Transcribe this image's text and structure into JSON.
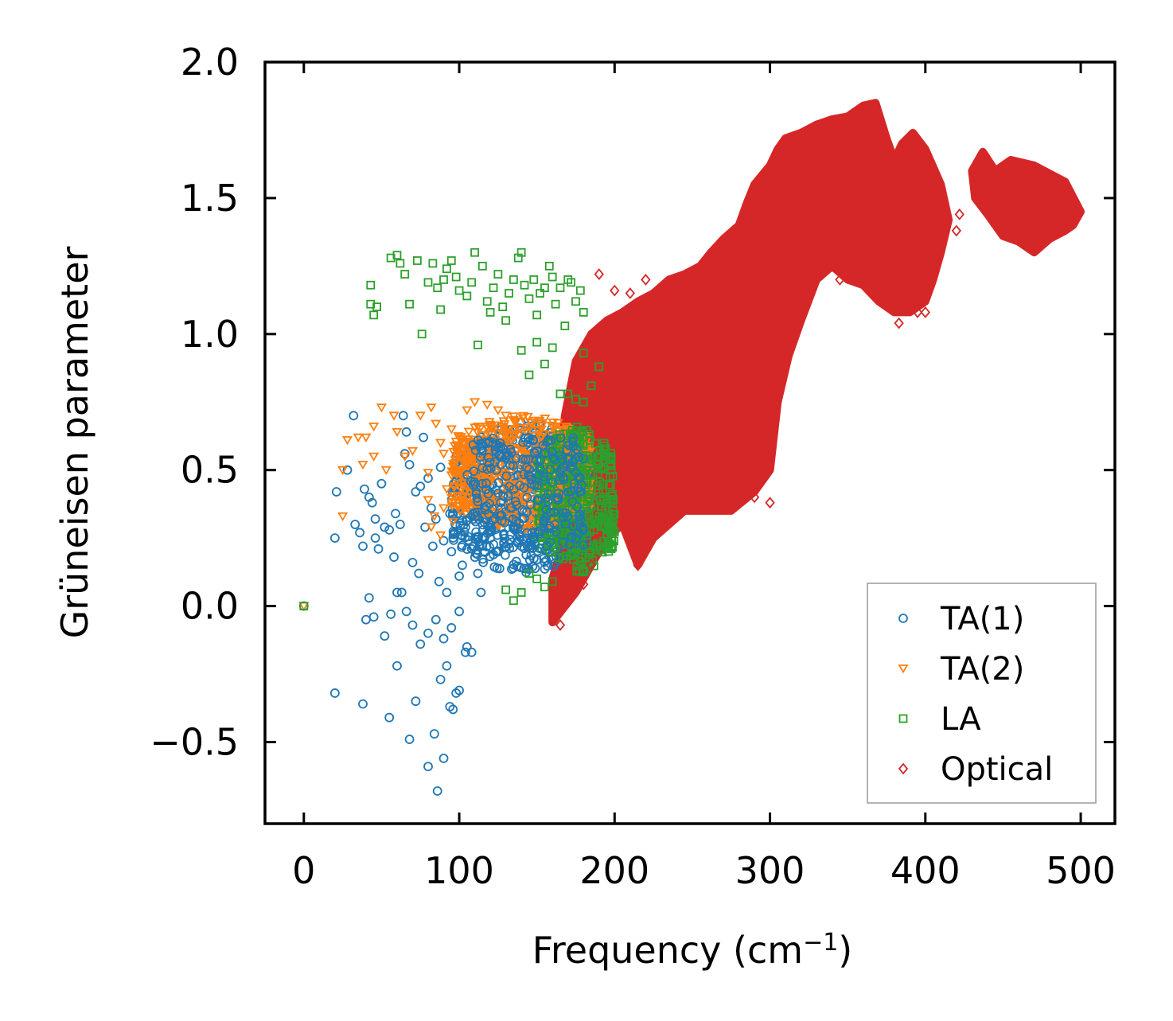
{
  "chart_data": {
    "type": "scatter",
    "title": "",
    "xlabel": "Frequency (cm",
    "xlabel_sup": "−1",
    "xlabel_close": ")",
    "ylabel": "Grüneisen parameter",
    "xlim": [
      -25,
      522
    ],
    "ylim": [
      -0.8,
      2.0
    ],
    "xticks": [
      0,
      100,
      200,
      300,
      400,
      500
    ],
    "xtick_labels": [
      "0",
      "100",
      "200",
      "300",
      "400",
      "500"
    ],
    "yticks": [
      -0.5,
      0.0,
      0.5,
      1.0,
      1.5,
      2.0
    ],
    "ytick_labels": [
      "−0.5",
      "0.0",
      "0.5",
      "1.0",
      "1.5",
      "2.0"
    ],
    "legend_position": "bottom-right",
    "series": [
      {
        "name": "TA(1)",
        "marker": "circle",
        "color": "#1f77b4",
        "points": [
          [
            0,
            0.0
          ],
          [
            20,
            0.25
          ],
          [
            21,
            0.42
          ],
          [
            28,
            0.5
          ],
          [
            32,
            0.7
          ],
          [
            33,
            0.3
          ],
          [
            36,
            0.27
          ],
          [
            38,
            0.22
          ],
          [
            39,
            0.43
          ],
          [
            42,
            0.4
          ],
          [
            44,
            0.38
          ],
          [
            46,
            0.32
          ],
          [
            46,
            0.25
          ],
          [
            48,
            0.21
          ],
          [
            50,
            0.45
          ],
          [
            52,
            0.29
          ],
          [
            55,
            0.28
          ],
          [
            58,
            0.18
          ],
          [
            59,
            0.34
          ],
          [
            62,
            0.3
          ],
          [
            64,
            0.7
          ],
          [
            65,
            0.56
          ],
          [
            66,
            0.64
          ],
          [
            68,
            0.52
          ],
          [
            70,
            0.16
          ],
          [
            72,
            0.42
          ],
          [
            74,
            0.12
          ],
          [
            75,
            0.44
          ],
          [
            77,
            0.62
          ],
          [
            78,
            0.29
          ],
          [
            80,
            0.47
          ],
          [
            82,
            0.36
          ],
          [
            83,
            0.22
          ],
          [
            85,
            0.32
          ],
          [
            87,
            0.09
          ],
          [
            88,
            0.51
          ],
          [
            90,
            0.24
          ],
          [
            92,
            0.05
          ],
          [
            94,
            0.34
          ],
          [
            95,
            0.2
          ],
          [
            97,
            0.27
          ],
          [
            99,
            0.56
          ],
          [
            100,
            0.11
          ],
          [
            102,
            0.15
          ],
          [
            104,
            0.29
          ],
          [
            106,
            0.45
          ],
          [
            108,
            0.21
          ],
          [
            110,
            0.35
          ],
          [
            112,
            0.12
          ],
          [
            114,
            0.05
          ],
          [
            116,
            0.48
          ],
          [
            118,
            0.39
          ],
          [
            120,
            0.25
          ],
          [
            42,
            0.03
          ],
          [
            40,
            -0.05
          ],
          [
            45,
            -0.04
          ],
          [
            52,
            -0.11
          ],
          [
            56,
            -0.03
          ],
          [
            60,
            0.05
          ],
          [
            63,
            0.05
          ],
          [
            66,
            -0.02
          ],
          [
            70,
            -0.07
          ],
          [
            75,
            -0.14
          ],
          [
            80,
            -0.1
          ],
          [
            85,
            -0.05
          ],
          [
            90,
            -0.12
          ],
          [
            95,
            -0.08
          ],
          [
            100,
            -0.02
          ],
          [
            105,
            -0.15
          ],
          [
            108,
            -0.17
          ],
          [
            20,
            -0.32
          ],
          [
            38,
            -0.36
          ],
          [
            55,
            -0.41
          ],
          [
            60,
            -0.22
          ],
          [
            68,
            -0.49
          ],
          [
            72,
            -0.35
          ],
          [
            80,
            -0.59
          ],
          [
            84,
            -0.47
          ],
          [
            86,
            -0.68
          ],
          [
            88,
            -0.27
          ],
          [
            90,
            -0.56
          ],
          [
            92,
            -0.22
          ],
          [
            94,
            -0.37
          ],
          [
            96,
            -0.38
          ],
          [
            98,
            -0.32
          ],
          [
            100,
            -0.31
          ],
          [
            104,
            -0.17
          ]
        ],
        "cloud": {
          "x": [
            95,
            185
          ],
          "y": [
            0.12,
            0.68
          ],
          "count": 520
        }
      },
      {
        "name": "TA(2)",
        "marker": "triangle-down",
        "color": "#ff7f0e",
        "points": [
          [
            0,
            0.0
          ],
          [
            25,
            0.5
          ],
          [
            25,
            0.33
          ],
          [
            28,
            0.61
          ],
          [
            35,
            0.62
          ],
          [
            38,
            0.52
          ],
          [
            40,
            0.62
          ],
          [
            45,
            0.66
          ],
          [
            45,
            0.55
          ],
          [
            50,
            0.73
          ],
          [
            53,
            0.5
          ],
          [
            58,
            0.7
          ],
          [
            60,
            0.64
          ],
          [
            65,
            0.55
          ],
          [
            70,
            0.57
          ],
          [
            75,
            0.7
          ],
          [
            80,
            0.49
          ],
          [
            82,
            0.73
          ],
          [
            85,
            0.67
          ],
          [
            88,
            0.6
          ],
          [
            90,
            0.56
          ],
          [
            95,
            0.65
          ],
          [
            100,
            0.58
          ],
          [
            105,
            0.72
          ],
          [
            110,
            0.75
          ],
          [
            112,
            0.66
          ],
          [
            118,
            0.74
          ],
          [
            125,
            0.72
          ],
          [
            130,
            0.7
          ],
          [
            80,
            0.39
          ],
          [
            82,
            0.29
          ],
          [
            84,
            0.33
          ],
          [
            88,
            0.26
          ],
          [
            90,
            0.36
          ],
          [
            92,
            0.43
          ],
          [
            96,
            0.31
          ]
        ],
        "cloud": {
          "x": [
            95,
            185
          ],
          "y": [
            0.28,
            0.7
          ],
          "count": 650
        }
      },
      {
        "name": "LA",
        "marker": "square",
        "color": "#2ca02c",
        "points": [
          [
            0,
            0.0
          ],
          [
            43,
            1.18
          ],
          [
            43,
            1.11
          ],
          [
            45,
            1.07
          ],
          [
            47,
            1.1
          ],
          [
            56,
            1.28
          ],
          [
            60,
            1.29
          ],
          [
            62,
            1.26
          ],
          [
            65,
            1.22
          ],
          [
            68,
            1.11
          ],
          [
            73,
            1.27
          ],
          [
            76,
            1.0
          ],
          [
            80,
            1.19
          ],
          [
            83,
            1.26
          ],
          [
            86,
            1.17
          ],
          [
            88,
            1.09
          ],
          [
            90,
            1.2
          ],
          [
            92,
            1.24
          ],
          [
            95,
            1.27
          ],
          [
            98,
            1.21
          ],
          [
            100,
            1.16
          ],
          [
            105,
            1.14
          ],
          [
            108,
            1.19
          ],
          [
            110,
            1.3
          ],
          [
            112,
            0.96
          ],
          [
            115,
            1.25
          ],
          [
            118,
            1.12
          ],
          [
            120,
            1.08
          ],
          [
            122,
            1.17
          ],
          [
            125,
            1.22
          ],
          [
            128,
            1.1
          ],
          [
            130,
            1.05
          ],
          [
            132,
            1.15
          ],
          [
            135,
            1.2
          ],
          [
            138,
            1.28
          ],
          [
            140,
            1.3
          ],
          [
            142,
            1.18
          ],
          [
            145,
            1.13
          ],
          [
            148,
            1.2
          ],
          [
            150,
            1.07
          ],
          [
            152,
            1.15
          ],
          [
            155,
            1.17
          ],
          [
            158,
            1.25
          ],
          [
            160,
            1.21
          ],
          [
            162,
            1.11
          ],
          [
            165,
            1.17
          ],
          [
            168,
            1.03
          ],
          [
            170,
            1.2
          ],
          [
            172,
            1.19
          ],
          [
            175,
            1.12
          ],
          [
            178,
            1.16
          ],
          [
            180,
            1.08
          ],
          [
            140,
            0.94
          ],
          [
            145,
            0.85
          ],
          [
            150,
            0.97
          ],
          [
            155,
            0.89
          ],
          [
            160,
            0.95
          ],
          [
            165,
            0.78
          ],
          [
            170,
            0.78
          ],
          [
            175,
            0.76
          ],
          [
            180,
            0.75
          ],
          [
            185,
            0.81
          ],
          [
            190,
            0.88
          ],
          [
            180,
            0.93
          ],
          [
            130,
            0.06
          ],
          [
            135,
            0.02
          ],
          [
            140,
            0.05
          ],
          [
            145,
            0.12
          ],
          [
            150,
            0.1
          ],
          [
            155,
            0.07
          ],
          [
            160,
            0.09
          ]
        ],
        "cloud": {
          "x": [
            150,
            200
          ],
          "y": [
            0.12,
            0.66
          ],
          "count": 380
        }
      },
      {
        "name": "Optical",
        "marker": "diamond",
        "color": "#d62728",
        "points": [
          [
            165,
            -0.07
          ],
          [
            170,
            0.03
          ],
          [
            180,
            0.08
          ],
          [
            185,
            0.15
          ],
          [
            190,
            1.22
          ],
          [
            200,
            1.16
          ],
          [
            210,
            1.15
          ],
          [
            215,
            0.15
          ],
          [
            220,
            1.2
          ],
          [
            230,
            1.15
          ],
          [
            240,
            1.18
          ],
          [
            250,
            1.2
          ],
          [
            260,
            1.24
          ],
          [
            270,
            1.28
          ],
          [
            280,
            1.33
          ],
          [
            290,
            0.4
          ],
          [
            295,
            0.48
          ],
          [
            300,
            0.38
          ],
          [
            305,
            0.85
          ],
          [
            310,
            0.9
          ],
          [
            330,
            1.35
          ],
          [
            340,
            1.25
          ],
          [
            345,
            1.2
          ],
          [
            380,
            1.1
          ],
          [
            383,
            1.04
          ],
          [
            395,
            1.08
          ],
          [
            400,
            1.08
          ],
          [
            410,
            1.35
          ],
          [
            420,
            1.38
          ],
          [
            422,
            1.44
          ]
        ],
        "region": [
          [
            160,
            -0.06
          ],
          [
            175,
            0.05
          ],
          [
            185,
            0.15
          ],
          [
            195,
            0.25
          ],
          [
            205,
            0.3
          ],
          [
            215,
            0.15
          ],
          [
            225,
            0.25
          ],
          [
            235,
            0.3
          ],
          [
            245,
            0.35
          ],
          [
            260,
            0.35
          ],
          [
            275,
            0.35
          ],
          [
            290,
            0.42
          ],
          [
            300,
            0.5
          ],
          [
            305,
            0.75
          ],
          [
            312,
            0.92
          ],
          [
            320,
            1.05
          ],
          [
            330,
            1.2
          ],
          [
            340,
            1.25
          ],
          [
            350,
            1.2
          ],
          [
            360,
            1.18
          ],
          [
            370,
            1.12
          ],
          [
            380,
            1.08
          ],
          [
            390,
            1.08
          ],
          [
            400,
            1.12
          ],
          [
            405,
            1.2
          ],
          [
            410,
            1.3
          ],
          [
            415,
            1.42
          ],
          [
            410,
            1.55
          ],
          [
            400,
            1.68
          ],
          [
            392,
            1.74
          ],
          [
            385,
            1.7
          ],
          [
            380,
            1.64
          ],
          [
            375,
            1.72
          ],
          [
            368,
            1.85
          ],
          [
            360,
            1.84
          ],
          [
            350,
            1.8
          ],
          [
            340,
            1.79
          ],
          [
            330,
            1.77
          ],
          [
            320,
            1.74
          ],
          [
            310,
            1.72
          ],
          [
            305,
            1.68
          ],
          [
            300,
            1.62
          ],
          [
            290,
            1.55
          ],
          [
            285,
            1.48
          ],
          [
            280,
            1.4
          ],
          [
            270,
            1.35
          ],
          [
            262,
            1.3
          ],
          [
            255,
            1.25
          ],
          [
            245,
            1.22
          ],
          [
            235,
            1.2
          ],
          [
            225,
            1.15
          ],
          [
            215,
            1.12
          ],
          [
            205,
            1.08
          ],
          [
            195,
            1.05
          ],
          [
            185,
            1.0
          ],
          [
            175,
            0.9
          ],
          [
            168,
            0.7
          ],
          [
            165,
            0.5
          ],
          [
            165,
            0.2
          ],
          [
            160,
            0.1
          ]
        ],
        "region2": [
          [
            430,
            1.6
          ],
          [
            437,
            1.67
          ],
          [
            445,
            1.6
          ],
          [
            455,
            1.64
          ],
          [
            470,
            1.62
          ],
          [
            490,
            1.56
          ],
          [
            500,
            1.45
          ],
          [
            495,
            1.4
          ],
          [
            490,
            1.38
          ],
          [
            480,
            1.35
          ],
          [
            470,
            1.3
          ],
          [
            460,
            1.34
          ],
          [
            450,
            1.36
          ],
          [
            440,
            1.44
          ],
          [
            432,
            1.5
          ]
        ]
      }
    ]
  }
}
